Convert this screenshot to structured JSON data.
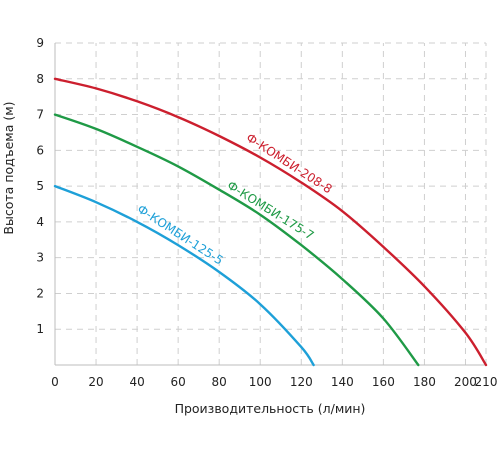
{
  "chart_data": {
    "type": "line",
    "title": "",
    "xlabel": "Производительность (л/мин)",
    "ylabel": "Высота подъема (м)",
    "xlim": [
      0,
      210
    ],
    "ylim": [
      0,
      9
    ],
    "x_ticks": [
      0,
      20,
      40,
      60,
      80,
      100,
      120,
      140,
      160,
      180,
      200,
      210
    ],
    "y_ticks": [
      1,
      2,
      3,
      4,
      5,
      6,
      7,
      8,
      9
    ],
    "grid": "dashed",
    "series": [
      {
        "name": "Ф-КОМБИ-208-8",
        "color": "#cc1f2e",
        "x": [
          0,
          20,
          40,
          60,
          80,
          100,
          120,
          140,
          160,
          180,
          200,
          210
        ],
        "y": [
          8.0,
          7.73,
          7.37,
          6.93,
          6.4,
          5.8,
          5.1,
          4.3,
          3.3,
          2.2,
          0.9,
          0.0
        ]
      },
      {
        "name": "Ф-КОМБИ-175-7",
        "color": "#1f9a46",
        "x": [
          0,
          20,
          40,
          60,
          80,
          100,
          120,
          140,
          160,
          177
        ],
        "y": [
          7.0,
          6.6,
          6.1,
          5.55,
          4.9,
          4.2,
          3.35,
          2.4,
          1.3,
          0.0
        ]
      },
      {
        "name": "Ф-КОМБИ-125-5",
        "color": "#1ea0d8",
        "x": [
          0,
          20,
          40,
          60,
          80,
          100,
          120,
          126
        ],
        "y": [
          5.0,
          4.55,
          4.0,
          3.35,
          2.6,
          1.7,
          0.5,
          0.0
        ]
      }
    ]
  }
}
